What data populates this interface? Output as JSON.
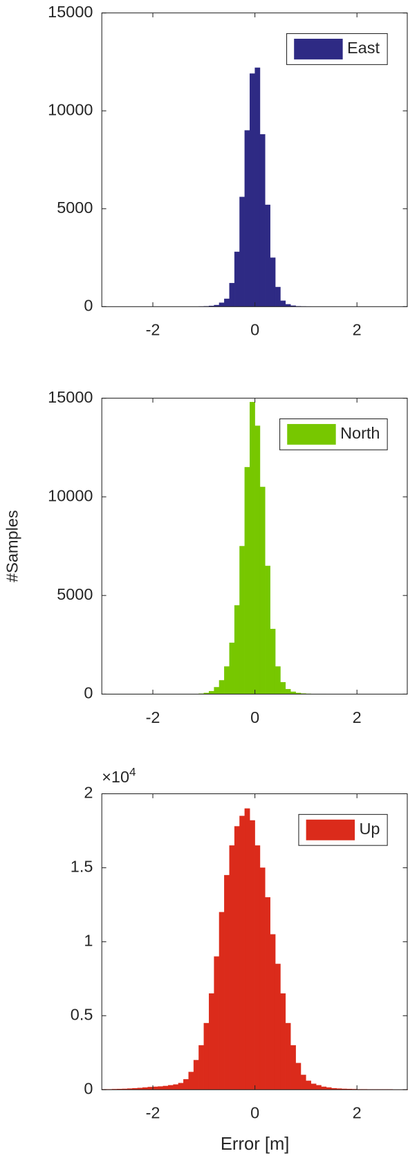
{
  "chart_data": [
    {
      "type": "histogram",
      "xlim": [
        -3,
        3
      ],
      "xticks": [
        -2,
        0,
        2
      ],
      "ylim": [
        0,
        15000
      ],
      "yticks": [
        0,
        5000,
        10000,
        15000
      ],
      "legend": "northeast",
      "box": true,
      "bins": [
        -3,
        -2.9,
        -2.8,
        -2.7,
        -2.6,
        -2.5,
        -2.4,
        -2.3,
        -2.2,
        -2.1,
        -2,
        -1.9,
        -1.8,
        -1.7,
        -1.6,
        -1.5,
        -1.4,
        -1.3,
        -1.2,
        -1.1,
        -1,
        -0.9,
        -0.8,
        -0.7,
        -0.6,
        -0.5,
        -0.4,
        -0.3,
        -0.2,
        -0.1,
        0,
        0.1,
        0.2,
        0.3,
        0.4,
        0.5,
        0.6,
        0.7,
        0.8,
        0.9,
        1,
        1.1,
        1.2,
        1.3,
        1.4,
        1.5,
        1.6,
        1.7,
        1.8,
        1.9,
        2,
        2.1,
        2.2,
        2.3,
        2.4,
        2.5,
        2.6,
        2.7,
        2.8,
        2.9,
        3
      ],
      "series": [
        {
          "name": "East",
          "color": "#2e2a84",
          "values": [
            0,
            0,
            0,
            0,
            0,
            0,
            0,
            0,
            0,
            0,
            0,
            0,
            0,
            0,
            0,
            0,
            0,
            0,
            0,
            8,
            20,
            40,
            80,
            200,
            400,
            1200,
            2800,
            5600,
            9000,
            11900,
            12200,
            8800,
            5200,
            2500,
            1000,
            300,
            120,
            50,
            20,
            10,
            5,
            2,
            2,
            2,
            2,
            2,
            0,
            0,
            0,
            0,
            0,
            0,
            0,
            0,
            0,
            0,
            0,
            0,
            0,
            0
          ]
        }
      ]
    },
    {
      "type": "histogram",
      "ylabel": "#Samples",
      "xlim": [
        -3,
        3
      ],
      "xticks": [
        -2,
        0,
        2
      ],
      "ylim": [
        0,
        15000
      ],
      "yticks": [
        0,
        5000,
        10000,
        15000
      ],
      "legend": "northeast",
      "box": true,
      "bins": [
        -3,
        -2.9,
        -2.8,
        -2.7,
        -2.6,
        -2.5,
        -2.4,
        -2.3,
        -2.2,
        -2.1,
        -2,
        -1.9,
        -1.8,
        -1.7,
        -1.6,
        -1.5,
        -1.4,
        -1.3,
        -1.2,
        -1.1,
        -1,
        -0.9,
        -0.8,
        -0.7,
        -0.6,
        -0.5,
        -0.4,
        -0.3,
        -0.2,
        -0.1,
        0,
        0.1,
        0.2,
        0.3,
        0.4,
        0.5,
        0.6,
        0.7,
        0.8,
        0.9,
        1,
        1.1,
        1.2,
        1.3,
        1.4,
        1.5,
        1.6,
        1.7,
        1.8,
        1.9,
        2,
        2.1,
        2.2,
        2.3,
        2.4,
        2.5,
        2.6,
        2.7,
        2.8,
        2.9,
        3
      ],
      "series": [
        {
          "name": "North",
          "color": "#77c700",
          "values": [
            5,
            5,
            5,
            5,
            5,
            5,
            5,
            5,
            5,
            5,
            5,
            5,
            5,
            5,
            5,
            5,
            5,
            5,
            5,
            20,
            60,
            150,
            350,
            700,
            1400,
            2600,
            4500,
            7500,
            11500,
            14800,
            13600,
            10500,
            6500,
            3300,
            1400,
            600,
            250,
            120,
            60,
            30,
            15,
            8,
            5,
            2,
            0,
            0,
            0,
            0,
            0,
            0,
            0,
            0,
            0,
            0,
            0,
            0,
            0,
            0,
            0,
            0
          ]
        }
      ]
    },
    {
      "type": "histogram",
      "xlabel": "Error [m]",
      "y_exponent": {
        "base": "×10",
        "power": "4"
      },
      "xlim": [
        -3,
        3
      ],
      "xticks": [
        -2,
        0,
        2
      ],
      "ylim": [
        0,
        2
      ],
      "yticks": [
        0,
        0.5,
        1,
        1.5,
        2
      ],
      "legend": "northeast",
      "box": true,
      "bins": [
        -3,
        -2.9,
        -2.8,
        -2.7,
        -2.6,
        -2.5,
        -2.4,
        -2.3,
        -2.2,
        -2.1,
        -2,
        -1.9,
        -1.8,
        -1.7,
        -1.6,
        -1.5,
        -1.4,
        -1.3,
        -1.2,
        -1.1,
        -1,
        -0.9,
        -0.8,
        -0.7,
        -0.6,
        -0.5,
        -0.4,
        -0.3,
        -0.2,
        -0.1,
        0,
        0.1,
        0.2,
        0.3,
        0.4,
        0.5,
        0.6,
        0.7,
        0.8,
        0.9,
        1,
        1.1,
        1.2,
        1.3,
        1.4,
        1.5,
        1.6,
        1.7,
        1.8,
        1.9,
        2,
        2.1,
        2.2,
        2.3,
        2.4,
        2.5,
        2.6,
        2.7,
        2.8,
        2.9,
        3
      ],
      "series": [
        {
          "name": "Up",
          "color": "#db2b1b",
          "values": [
            0.003,
            0.003,
            0.004,
            0.005,
            0.006,
            0.008,
            0.01,
            0.012,
            0.015,
            0.018,
            0.02,
            0.022,
            0.025,
            0.03,
            0.035,
            0.045,
            0.07,
            0.12,
            0.2,
            0.3,
            0.45,
            0.65,
            0.9,
            1.2,
            1.45,
            1.65,
            1.78,
            1.85,
            1.9,
            1.82,
            1.65,
            1.5,
            1.3,
            1.05,
            0.85,
            0.65,
            0.45,
            0.3,
            0.18,
            0.1,
            0.06,
            0.04,
            0.03,
            0.02,
            0.015,
            0.01,
            0.008,
            0.006,
            0.005,
            0.004,
            0.003,
            0.003,
            0.002,
            0.002,
            0.002,
            0.002,
            0.002,
            0.001,
            0.001,
            0.001
          ]
        }
      ]
    }
  ]
}
